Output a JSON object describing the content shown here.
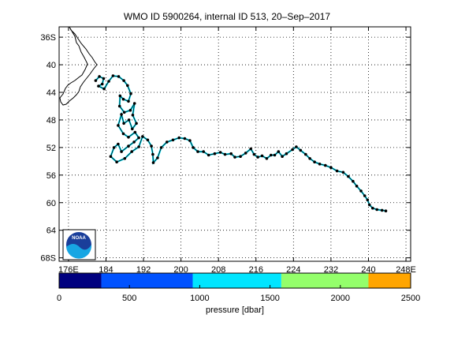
{
  "chart_data": {
    "type": "scatter",
    "title": "WMO ID 5900264, internal ID 513, 20–Sep–2017",
    "x_axis": {
      "range": [
        174,
        249
      ],
      "ticks": [
        176,
        184,
        192,
        200,
        208,
        216,
        224,
        232,
        240,
        248
      ],
      "tick_labels": [
        "176E",
        "184",
        "192",
        "200",
        "208",
        "216",
        "224",
        "232",
        "240",
        "248E"
      ]
    },
    "y_axis": {
      "range": [
        -68.5,
        -34.5
      ],
      "ticks": [
        -36,
        -40,
        -44,
        -48,
        -52,
        -56,
        -60,
        -64,
        -68
      ],
      "tick_labels": [
        "36S",
        "40",
        "44",
        "48",
        "52",
        "56",
        "60",
        "64",
        "68S"
      ]
    },
    "grid": true,
    "series": [
      {
        "values_note": "float track, longitude (deg E) / latitude (deg)",
        "points": [
          [
            181.8,
            -42.3
          ],
          [
            182.6,
            -41.7
          ],
          [
            183.5,
            -42.0
          ],
          [
            183.2,
            -42.8
          ],
          [
            182.4,
            -43.1
          ],
          [
            183.6,
            -43.5
          ],
          [
            184.6,
            -42.4
          ],
          [
            185.5,
            -41.6
          ],
          [
            186.7,
            -41.7
          ],
          [
            187.8,
            -42.3
          ],
          [
            188.6,
            -43.0
          ],
          [
            189.3,
            -44.2
          ],
          [
            188.8,
            -45.3
          ],
          [
            187.7,
            -45.0
          ],
          [
            187.0,
            -44.5
          ],
          [
            186.9,
            -46.0
          ],
          [
            187.9,
            -46.9
          ],
          [
            189.2,
            -46.6
          ],
          [
            190.1,
            -45.6
          ],
          [
            189.7,
            -47.3
          ],
          [
            190.5,
            -48.5
          ],
          [
            189.6,
            -49.3
          ],
          [
            188.9,
            -48.0
          ],
          [
            187.8,
            -48.5
          ],
          [
            187.3,
            -47.2
          ],
          [
            186.6,
            -48.8
          ],
          [
            187.7,
            -50.0
          ],
          [
            188.8,
            -50.5
          ],
          [
            190.2,
            -49.8
          ],
          [
            191.0,
            -50.6
          ],
          [
            190.0,
            -51.2
          ],
          [
            188.8,
            -51.8
          ],
          [
            187.3,
            -52.6
          ],
          [
            186.6,
            -51.5
          ],
          [
            185.7,
            -52.0
          ],
          [
            185.0,
            -53.3
          ],
          [
            186.3,
            -54.1
          ],
          [
            188.0,
            -53.6
          ],
          [
            189.5,
            -52.6
          ],
          [
            191.0,
            -51.9
          ],
          [
            191.8,
            -50.4
          ],
          [
            192.9,
            -50.9
          ],
          [
            193.7,
            -51.8
          ],
          [
            194.0,
            -53.0
          ],
          [
            194.1,
            -54.2
          ],
          [
            195.0,
            -53.5
          ],
          [
            195.8,
            -52.0
          ],
          [
            197.0,
            -51.2
          ],
          [
            198.3,
            -50.9
          ],
          [
            199.6,
            -50.6
          ],
          [
            200.8,
            -50.7
          ],
          [
            201.9,
            -51.0
          ],
          [
            202.6,
            -52.0
          ],
          [
            203.6,
            -52.6
          ],
          [
            204.8,
            -52.6
          ],
          [
            205.9,
            -53.1
          ],
          [
            207.2,
            -52.9
          ],
          [
            208.4,
            -52.7
          ],
          [
            209.4,
            -53.0
          ],
          [
            210.7,
            -52.9
          ],
          [
            211.5,
            -53.4
          ],
          [
            212.7,
            -53.3
          ],
          [
            213.8,
            -52.8
          ],
          [
            214.9,
            -52.2
          ],
          [
            215.6,
            -53.0
          ],
          [
            216.4,
            -53.4
          ],
          [
            217.3,
            -53.2
          ],
          [
            218.3,
            -53.6
          ],
          [
            219.2,
            -53.1
          ],
          [
            220.0,
            -53.1
          ],
          [
            220.8,
            -52.6
          ],
          [
            221.6,
            -53.3
          ],
          [
            222.5,
            -52.9
          ],
          [
            223.8,
            -52.3
          ],
          [
            224.6,
            -51.9
          ],
          [
            225.5,
            -52.4
          ],
          [
            226.6,
            -53.0
          ],
          [
            227.5,
            -53.6
          ],
          [
            228.5,
            -54.1
          ],
          [
            229.6,
            -54.4
          ],
          [
            230.8,
            -54.6
          ],
          [
            232.0,
            -54.9
          ],
          [
            233.3,
            -55.4
          ],
          [
            234.6,
            -55.6
          ],
          [
            235.7,
            -56.2
          ],
          [
            236.7,
            -56.9
          ],
          [
            237.5,
            -57.6
          ],
          [
            238.4,
            -58.3
          ],
          [
            239.2,
            -59.0
          ],
          [
            239.8,
            -59.6
          ],
          [
            240.2,
            -60.3
          ],
          [
            240.9,
            -60.8
          ],
          [
            241.8,
            -61.0
          ],
          [
            242.9,
            -61.1
          ],
          [
            243.7,
            -61.2
          ]
        ]
      }
    ],
    "colorbar": {
      "label": "pressure [dbar]",
      "range": [
        0,
        2500
      ],
      "ticks": [
        0,
        500,
        1000,
        1500,
        2000,
        2500
      ],
      "segments": [
        {
          "from": 0,
          "to": 300,
          "color": "#00007f"
        },
        {
          "from": 300,
          "to": 950,
          "color": "#0052ff"
        },
        {
          "from": 950,
          "to": 1580,
          "color": "#00e5ff"
        },
        {
          "from": 1580,
          "to": 2200,
          "color": "#94ff6b"
        },
        {
          "from": 2200,
          "to": 2500,
          "color": "#ffa500"
        }
      ]
    },
    "colors": {
      "track": "#00e5ff",
      "marker": "#000000",
      "coast": "#000000",
      "grid": "#000000"
    },
    "logo_text": "NOAA"
  }
}
